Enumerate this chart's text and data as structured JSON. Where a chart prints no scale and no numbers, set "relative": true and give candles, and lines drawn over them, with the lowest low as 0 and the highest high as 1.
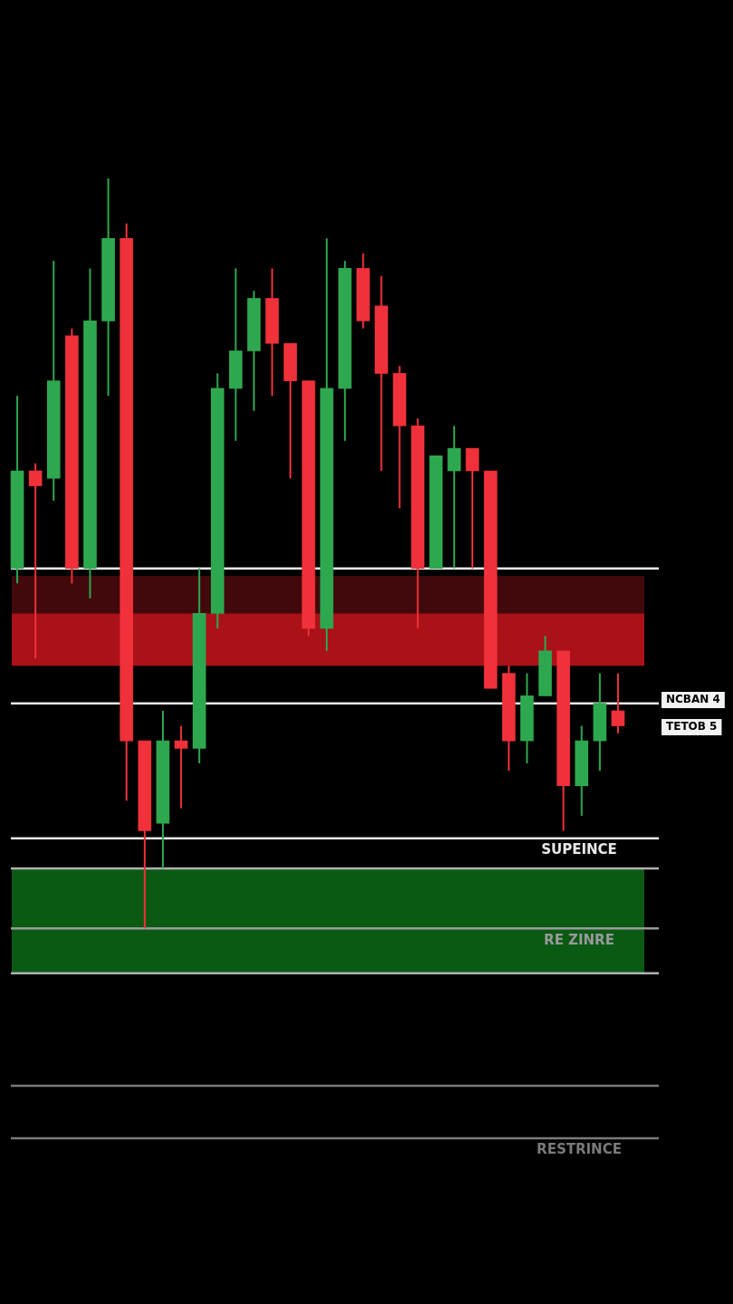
{
  "chart_data": {
    "type": "candlestick",
    "relative": true,
    "categories": [
      null,
      null,
      null,
      null,
      null,
      null,
      null,
      null,
      null,
      null,
      null,
      null,
      null,
      null,
      null,
      null,
      null,
      null,
      null,
      null,
      null,
      null,
      null,
      null,
      null,
      null,
      null,
      null,
      null,
      null,
      null,
      null,
      null,
      null
    ],
    "ohlc": [
      [
        0.48,
        0.71,
        0.46,
        0.61
      ],
      [
        0.61,
        0.62,
        0.36,
        0.59
      ],
      [
        0.6,
        0.89,
        0.57,
        0.73
      ],
      [
        0.79,
        0.8,
        0.46,
        0.48
      ],
      [
        0.48,
        0.88,
        0.44,
        0.81
      ],
      [
        0.81,
        1,
        0.71,
        0.92
      ],
      [
        0.92,
        0.94,
        0.17,
        0.25
      ],
      [
        0.25,
        0.25,
        0,
        0.13
      ],
      [
        0.14,
        0.29,
        0.08,
        0.25
      ],
      [
        0.25,
        0.27,
        0.16,
        0.24
      ],
      [
        0.24,
        0.48,
        0.22,
        0.42
      ],
      [
        0.42,
        0.74,
        0.4,
        0.72
      ],
      [
        0.72,
        0.88,
        0.65,
        0.77
      ],
      [
        0.77,
        0.85,
        0.69,
        0.84
      ],
      [
        0.84,
        0.88,
        0.71,
        0.78
      ],
      [
        0.78,
        0.78,
        0.6,
        0.73
      ],
      [
        0.73,
        0.73,
        0.39,
        0.4
      ],
      [
        0.4,
        0.92,
        0.37,
        0.72
      ],
      [
        0.72,
        0.89,
        0.65,
        0.88
      ],
      [
        0.88,
        0.9,
        0.8,
        0.81
      ],
      [
        0.83,
        0.87,
        0.61,
        0.74
      ],
      [
        0.74,
        0.75,
        0.56,
        0.67
      ],
      [
        0.67,
        0.68,
        0.4,
        0.48
      ],
      [
        0.48,
        0.63,
        0.48,
        0.63
      ],
      [
        0.61,
        0.67,
        0.48,
        0.64
      ],
      [
        0.64,
        0.64,
        0.48,
        0.61
      ],
      [
        0.61,
        0.61,
        0.32,
        0.32
      ],
      [
        0.34,
        0.35,
        0.21,
        0.25
      ],
      [
        0.25,
        0.34,
        0.22,
        0.31
      ],
      [
        0.31,
        0.39,
        0.31,
        0.37
      ],
      [
        0.37,
        0.37,
        0.13,
        0.19
      ],
      [
        0.19,
        0.27,
        0.15,
        0.25
      ],
      [
        0.25,
        0.34,
        0.21,
        0.3
      ],
      [
        0.29,
        0.34,
        0.26,
        0.27
      ]
    ],
    "colors": [
      "#2ea84f",
      "#f0313a",
      "#2ea84f",
      "#f0313a",
      "#2ea84f",
      "#2ea84f",
      "#f0313a",
      "#f0313a",
      "#2ea84f",
      "#f0313a",
      "#2ea84f",
      "#2ea84f",
      "#2ea84f",
      "#2ea84f",
      "#f0313a",
      "#f0313a",
      "#f0313a",
      "#2ea84f",
      "#2ea84f",
      "#f0313a",
      "#f0313a",
      "#f0313a",
      "#f0313a",
      "#2ea84f",
      "#2ea84f",
      "#f0313a",
      "#f0313a",
      "#f0313a",
      "#2ea84f",
      "#2ea84f",
      "#f0313a",
      "#2ea84f",
      "#2ea84f",
      "#f0313a"
    ],
    "bands": [
      {
        "axis": "y",
        "from": 0.35,
        "to": 0.42,
        "color": "#c8141c"
      },
      {
        "axis": "y",
        "from": 0.42,
        "to": 0.47,
        "color": "#4c0b0e"
      },
      {
        "axis": "y",
        "from": -0.06,
        "to": 0.08,
        "color": "#0c6a17"
      }
    ],
    "ref_lines": [
      {
        "axis": "y",
        "value": 0.48,
        "color": "#e8e8e8"
      },
      {
        "axis": "y",
        "value": 0.3,
        "color": "#e8e8e8"
      },
      {
        "axis": "y",
        "value": 0.12,
        "color": "#e8e8e8",
        "label": "SUPEINCE"
      },
      {
        "axis": "y",
        "value": 0.08,
        "color": "#b0b0b0"
      },
      {
        "axis": "y",
        "value": 0,
        "color": "#9a9a9a",
        "label": "RE ZINRE"
      },
      {
        "axis": "y",
        "value": -0.06,
        "color": "#b0b0b0"
      },
      {
        "axis": "y",
        "value": -0.21,
        "color": "#7a7a7a"
      },
      {
        "axis": "y",
        "value": -0.28,
        "color": "#7a7a7a",
        "label": "RESTRINCE"
      }
    ],
    "annotations": [
      "NCBAN 4",
      "TETOB 5"
    ],
    "legend": false
  }
}
